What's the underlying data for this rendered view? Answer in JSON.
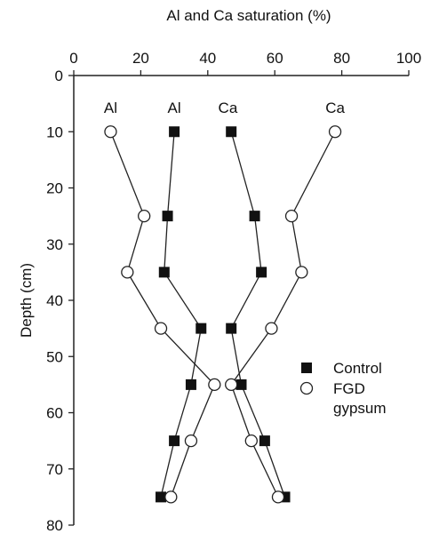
{
  "chart_data": {
    "type": "line",
    "orientation": "depth-profile",
    "title": "",
    "xlabel": "Al and Ca saturation (%)",
    "ylabel": "Depth (cm)",
    "xlim": [
      0,
      100
    ],
    "ylim": [
      0,
      80
    ],
    "y_reversed": true,
    "x_axis_position": "top",
    "grid": false,
    "x_ticks": [
      "0",
      "20",
      "40",
      "60",
      "80",
      "100"
    ],
    "y_ticks": [
      "0",
      "10",
      "20",
      "30",
      "40",
      "50",
      "60",
      "70",
      "80"
    ],
    "depths": [
      10,
      25,
      35,
      45,
      55,
      65,
      75
    ],
    "series": [
      {
        "name": "Control",
        "element": "Al",
        "marker": "filled-square",
        "x": [
          30,
          28,
          27,
          38,
          35,
          30,
          26
        ]
      },
      {
        "name": "Control",
        "element": "Ca",
        "marker": "filled-square",
        "x": [
          47,
          54,
          56,
          47,
          50,
          57,
          63
        ]
      },
      {
        "name": "FGD gypsum",
        "element": "Al",
        "marker": "open-circle",
        "x": [
          11,
          21,
          16,
          26,
          42,
          35,
          29
        ]
      },
      {
        "name": "FGD gypsum",
        "element": "Ca",
        "marker": "open-circle",
        "x": [
          78,
          65,
          68,
          59,
          47,
          53,
          61
        ]
      }
    ],
    "annotations": [
      {
        "text": "Al",
        "x": 11
      },
      {
        "text": "Al",
        "x": 30
      },
      {
        "text": "Ca",
        "x": 46
      },
      {
        "text": "Ca",
        "x": 78
      }
    ],
    "legend": {
      "placement": "right-middle",
      "entries": [
        {
          "marker": "filled-square",
          "label_lines": [
            "Control"
          ]
        },
        {
          "marker": "open-circle",
          "label_lines": [
            "FGD",
            "gypsum"
          ]
        }
      ]
    },
    "colors": {
      "line": "#222222",
      "marker_fill": "#111111",
      "open_fill": "#ffffff",
      "text": "#111111"
    }
  }
}
